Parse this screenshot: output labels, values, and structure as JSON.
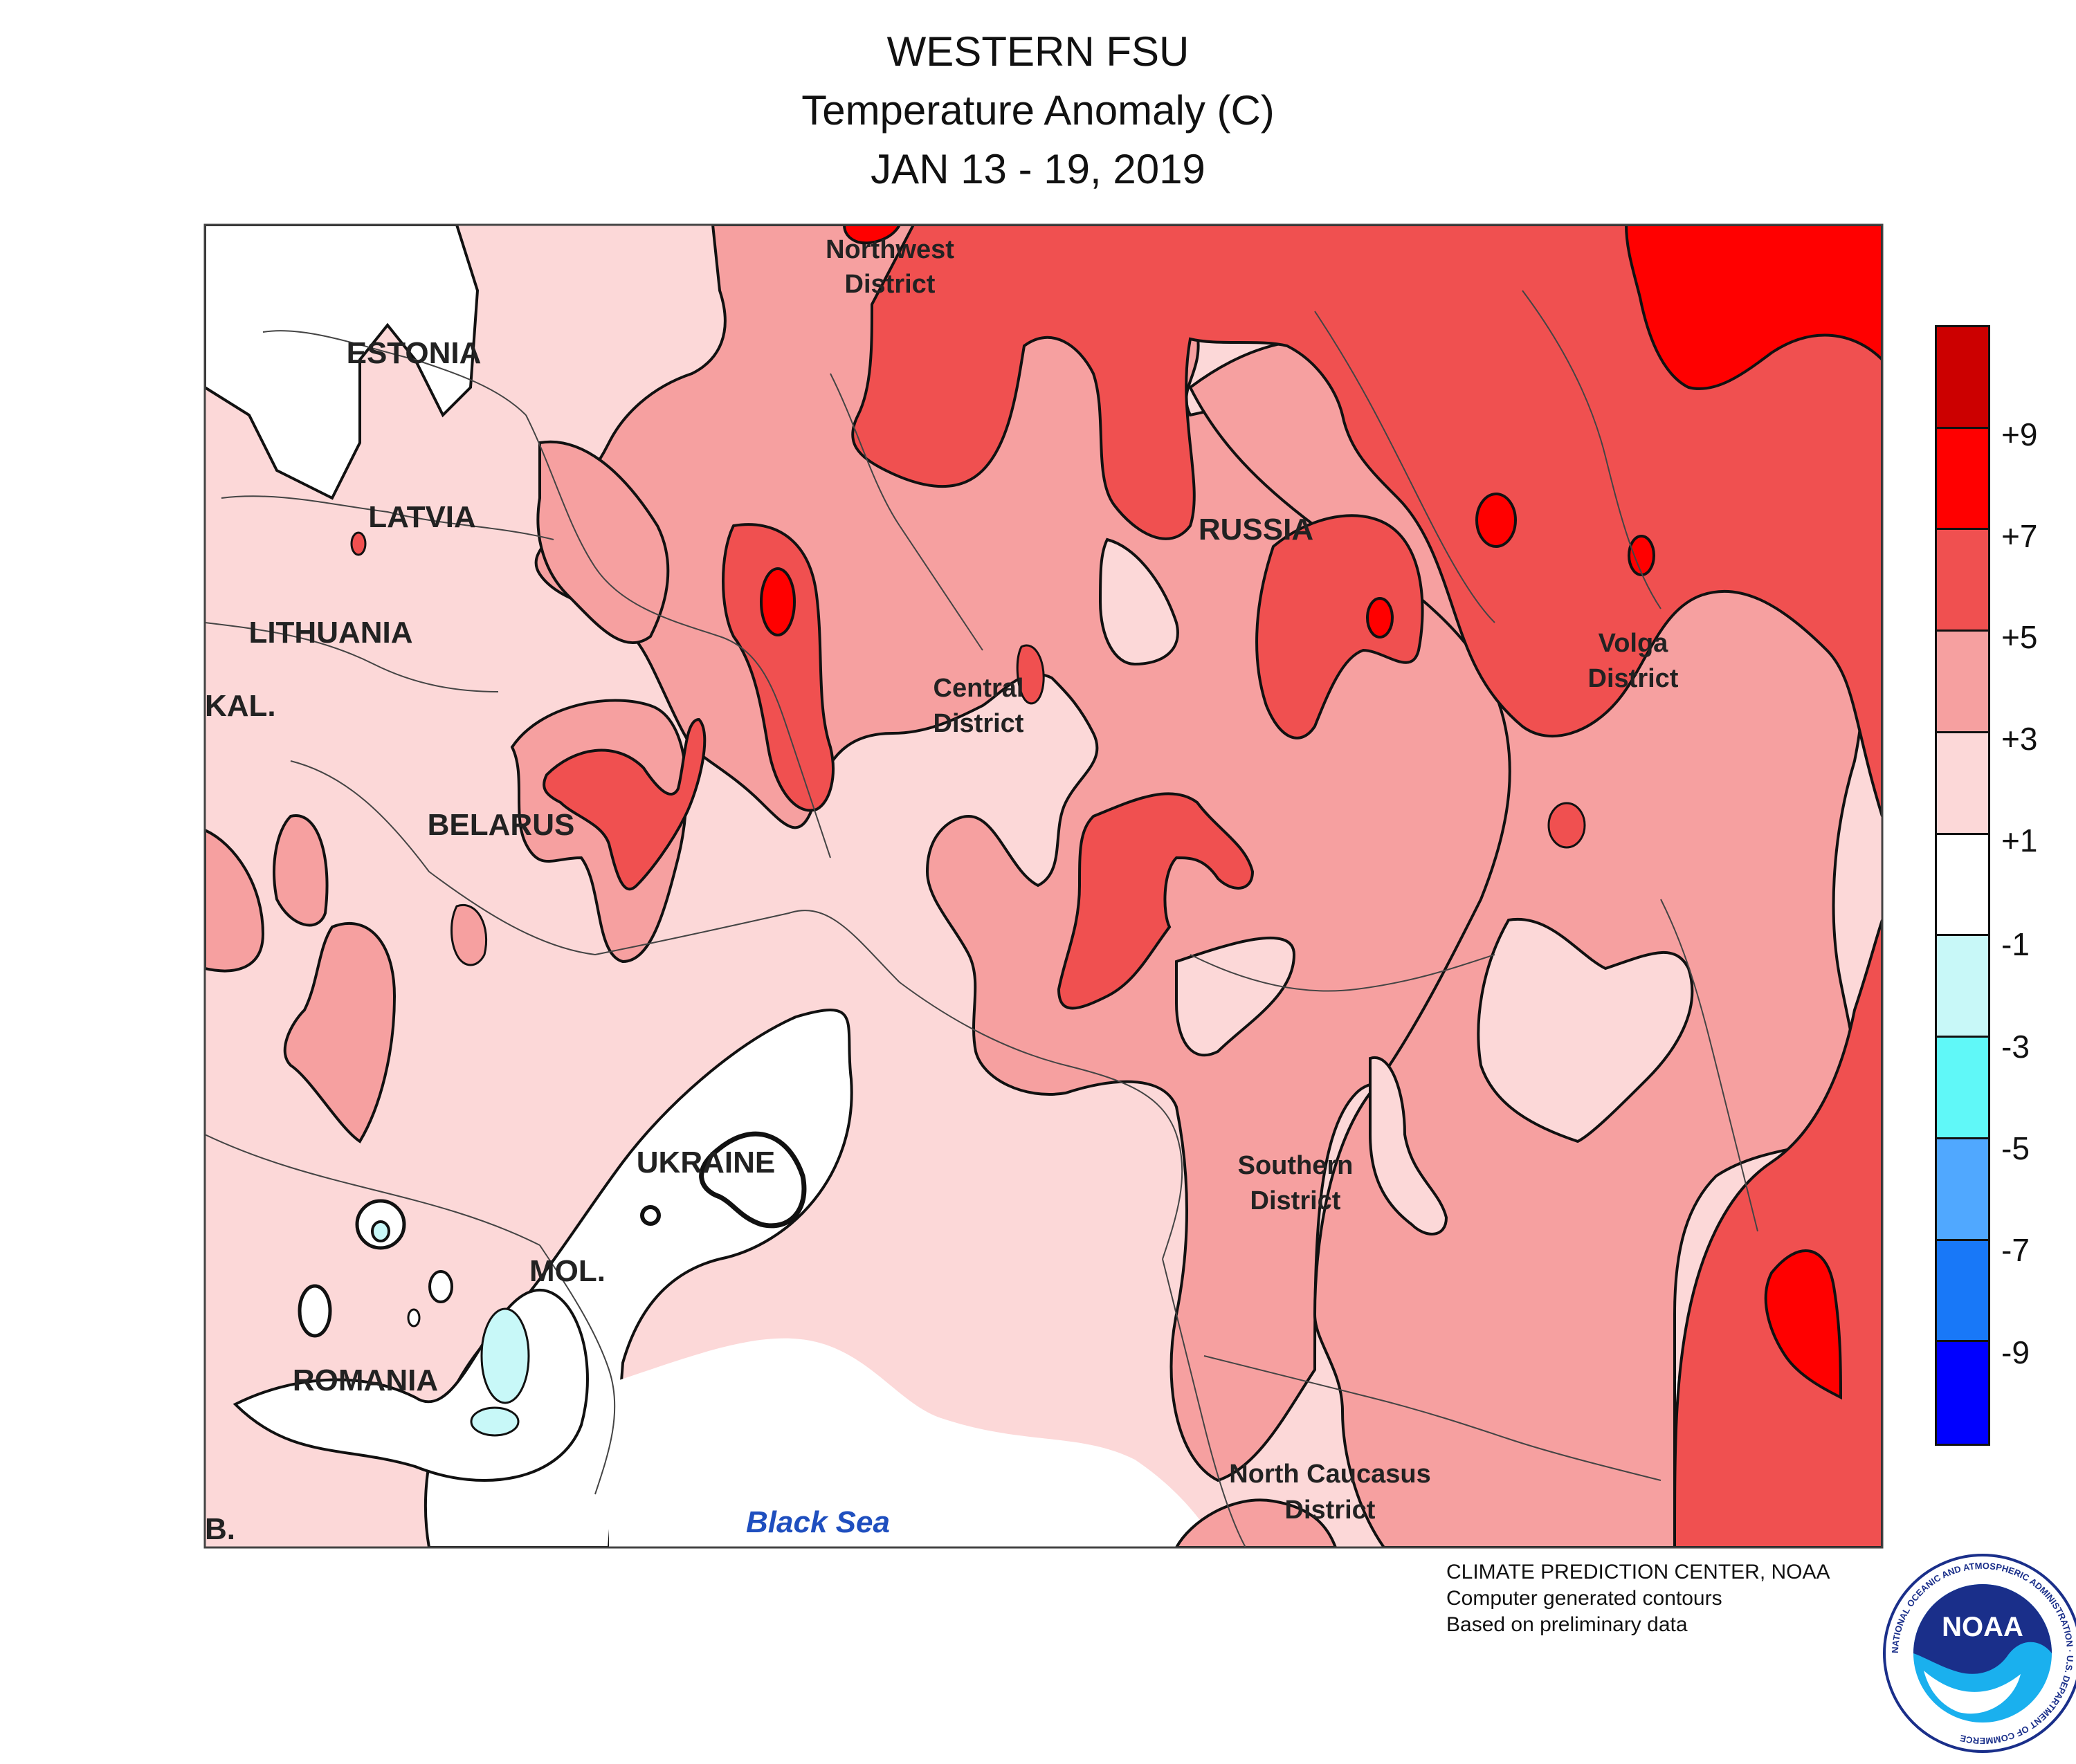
{
  "title": {
    "line1": "WESTERN FSU",
    "line2": "Temperature Anomaly (C)",
    "line3": "JAN 13 - 19, 2019"
  },
  "legend": {
    "labels": [
      "+9",
      "+7",
      "+5",
      "+3",
      "+1",
      "-1",
      "-3",
      "-5",
      "-7",
      "-9"
    ],
    "colors": [
      "#cc0000",
      "#ff0000",
      "#f05050",
      "#f6a0a0",
      "#fcd8d8",
      "#ffffff",
      "#c8f8f8",
      "#60f8f8",
      "#50a8ff",
      "#1878f8",
      "#0000ff"
    ]
  },
  "map": {
    "countries": {
      "estonia": "ESTONIA",
      "latvia": "LATVIA",
      "lithuania": "LITHUANIA",
      "kal": "KAL.",
      "belarus": "BELARUS",
      "russia": "RUSSIA",
      "ukraine": "UKRAINE",
      "moldova": "MOL.",
      "romania": "ROMANIA",
      "bulgaria": "B."
    },
    "districts": {
      "northwest": [
        "Northwest",
        "District"
      ],
      "central": [
        "Central",
        "District"
      ],
      "volga": [
        "Volga",
        "District"
      ],
      "southern": [
        "Southern",
        "District"
      ],
      "north_caucasus": [
        "North Caucasus",
        "District"
      ]
    },
    "sea": "Black Sea"
  },
  "credits": {
    "line1": "CLIMATE PREDICTION CENTER, NOAA",
    "line2": "Computer generated contours",
    "line3": "Based on preliminary data"
  },
  "logo": {
    "text": "NOAA",
    "ring_text": "NATIONAL OCEANIC AND ATMOSPHERIC ADMINISTRATION · U.S. DEPARTMENT OF COMMERCE"
  }
}
